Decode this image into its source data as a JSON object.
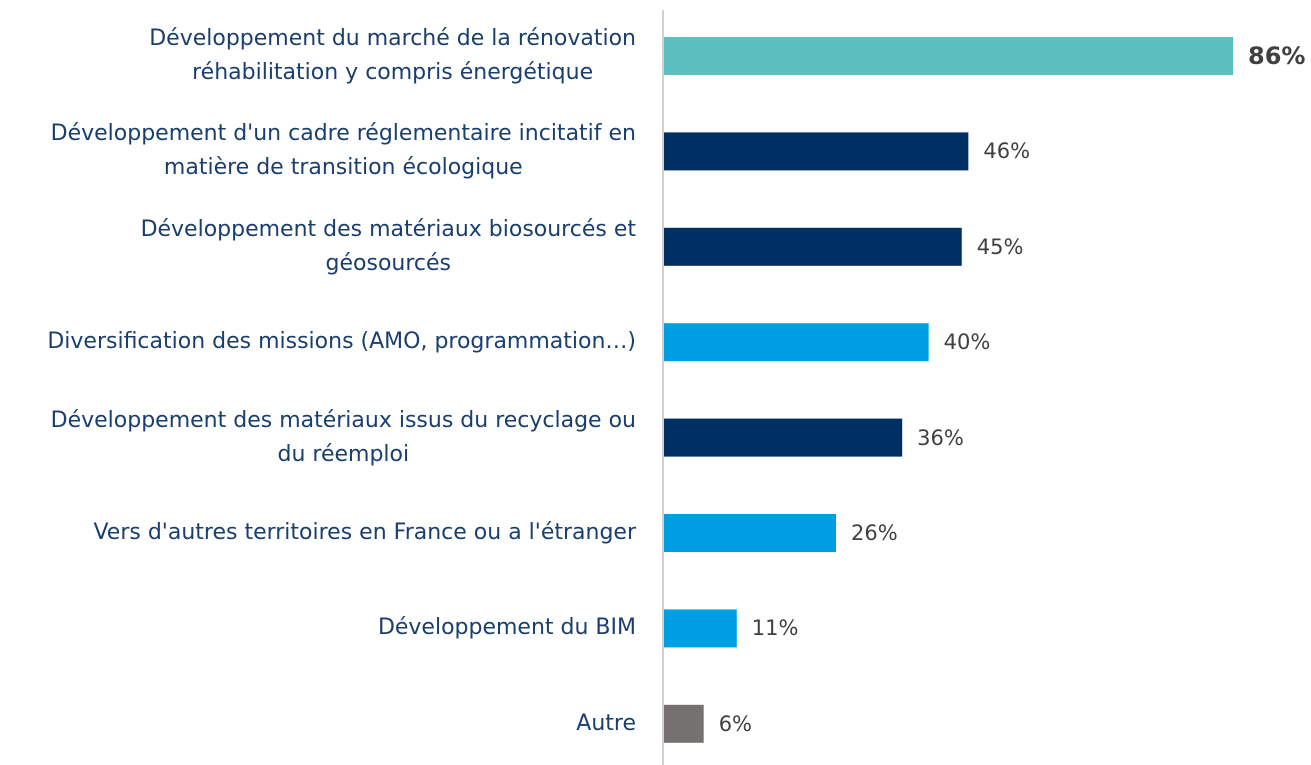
{
  "chart_data": {
    "type": "bar",
    "orientation": "horizontal",
    "categories": [
      "Développement du marché de la rénovation\nréhabilitation y compris énergétique",
      "Développement d'un cadre réglementaire incitatif en\nmatière de transition écologique",
      "Développement des matériaux biosourcés et\ngéosourcés",
      "Diversification des missions (AMO, programmation…)",
      "Développement des matériaux issus du recyclage ou\ndu réemploi",
      "Vers d'autres territoires en France ou a l'étranger",
      "Développement du BIM",
      "Autre"
    ],
    "values": [
      86,
      46,
      45,
      40,
      36,
      26,
      11,
      6
    ],
    "value_labels": [
      "86%",
      "46%",
      "45%",
      "40%",
      "36%",
      "26%",
      "11%",
      "6%"
    ],
    "colors": [
      "#5bbfbf",
      "#003063",
      "#003063",
      "#009fe3",
      "#003063",
      "#009fe3",
      "#009fe3",
      "#767171"
    ]
  }
}
